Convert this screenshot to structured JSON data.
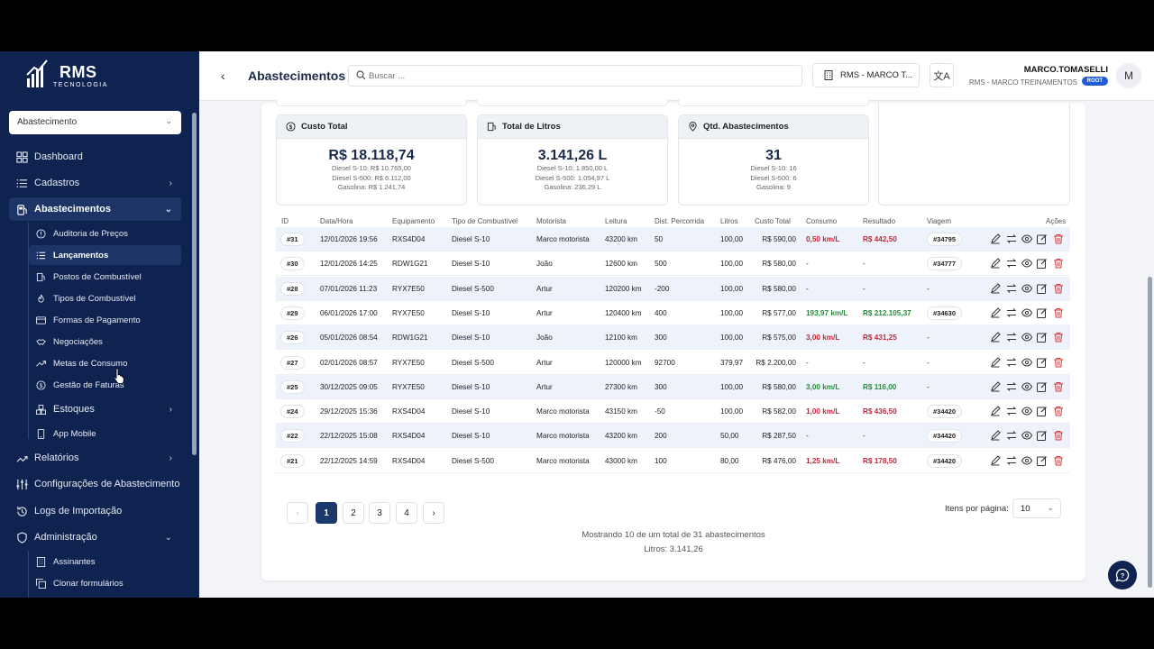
{
  "app": {
    "brand": "RMS",
    "brand_sub": "TECNOLOGIA"
  },
  "sidebar": {
    "module_select": "Abastecimento",
    "items": [
      {
        "label": "Dashboard",
        "icon": "grid-icon"
      },
      {
        "label": "Cadastros",
        "icon": "list-icon"
      },
      {
        "label": "Abastecimentos",
        "icon": "fuel-icon"
      },
      {
        "label": "Relatórios",
        "icon": "trend-icon"
      },
      {
        "label": "Configurações de Abastecimento",
        "icon": "sliders-icon"
      },
      {
        "label": "Logs de Importação",
        "icon": "history-icon"
      },
      {
        "label": "Administração",
        "icon": "shield-icon"
      }
    ],
    "sub_abastecimentos": [
      {
        "label": "Auditoria de Preços",
        "icon": "alert-circle-icon"
      },
      {
        "label": "Lançamentos",
        "icon": "list-icon"
      },
      {
        "label": "Postos de Combustível",
        "icon": "fuel-station-icon"
      },
      {
        "label": "Tipos de Combustível",
        "icon": "flame-icon"
      },
      {
        "label": "Formas de Pagamento",
        "icon": "credit-card-icon"
      },
      {
        "label": "Negociações",
        "icon": "handshake-icon"
      },
      {
        "label": "Metas de Consumo",
        "icon": "trend-icon"
      },
      {
        "label": "Gestão de Faturas",
        "icon": "dollar-circle-icon"
      },
      {
        "label": "Estoques",
        "icon": "boxes-icon"
      },
      {
        "label": "App Mobile",
        "icon": "smartphone-icon"
      }
    ],
    "sub_administracao": [
      {
        "label": "Assinantes",
        "icon": "building-icon"
      },
      {
        "label": "Clonar formulários",
        "icon": "copy-icon"
      }
    ]
  },
  "header": {
    "title": "Abastecimentos",
    "search_placeholder": "Buscar ...",
    "tenant": "RMS - MARCO T...",
    "user_name": "MARCO.TOMASELLI",
    "user_org": "RMS - MARCO TREINAMENTOS",
    "role": "ROOT",
    "avatar_initial": "M"
  },
  "stats": [
    {
      "title": "Custo Total",
      "icon": "dollar-circle-icon",
      "value": "R$ 18.118,74",
      "lines": [
        "Diesel S-10: R$ 10.765,00",
        "Diesel S-500: R$ 6.112,00",
        "Gasolina: R$ 1.241,74"
      ]
    },
    {
      "title": "Total de Litros",
      "icon": "fuel-icon",
      "value": "3.141,26 L",
      "lines": [
        "Diesel S-10: 1.850,00 L",
        "Diesel S-500: 1.054,97 L",
        "Gasolina: 236,29 L"
      ]
    },
    {
      "title": "Qtd. Abastecimentos",
      "icon": "map-pin-icon",
      "value": "31",
      "lines": [
        "Diesel S-10: 16",
        "Diesel S-500: 6",
        "Gasolina: 9"
      ]
    }
  ],
  "table": {
    "headers": [
      "ID",
      "Data/Hora",
      "Equipamento",
      "Tipo de Combustível",
      "Motorista",
      "Leitura",
      "Dist. Percorrida",
      "Litros",
      "Custo Total",
      "Consumo",
      "Resultado",
      "Viagem",
      "Ações"
    ],
    "rows": [
      {
        "id": "#31",
        "date": "12/01/2026 19:56",
        "equip": "RXS4D04",
        "fuel": "Diesel S-10",
        "driver": "Marco motorista",
        "reading": "43200 km",
        "dist": "50",
        "liters": "100,00",
        "cost": "R$ 590,00",
        "consumo": "0,50 km/L",
        "consumo_status": "red",
        "result": "R$ 442,50",
        "result_status": "red",
        "trip": "#34795"
      },
      {
        "id": "#30",
        "date": "12/01/2026 14:25",
        "equip": "RDW1G21",
        "fuel": "Diesel S-10",
        "driver": "João",
        "reading": "12600 km",
        "dist": "500",
        "liters": "100,00",
        "cost": "R$ 580,00",
        "consumo": "-",
        "consumo_status": "",
        "result": "-",
        "result_status": "",
        "trip": "#34777"
      },
      {
        "id": "#28",
        "date": "07/01/2026 11:23",
        "equip": "RYX7E50",
        "fuel": "Diesel S-500",
        "driver": "Artur",
        "reading": "120200 km",
        "dist": "-200",
        "liters": "100,00",
        "cost": "R$ 580,00",
        "consumo": "-",
        "consumo_status": "",
        "result": "-",
        "result_status": "",
        "trip": "-"
      },
      {
        "id": "#29",
        "date": "06/01/2026 17:00",
        "equip": "RYX7E50",
        "fuel": "Diesel S-10",
        "driver": "Artur",
        "reading": "120400 km",
        "dist": "400",
        "liters": "100,00",
        "cost": "R$ 577,00",
        "consumo": "193,97 km/L",
        "consumo_status": "green",
        "result": "R$ 212.105,37",
        "result_status": "green",
        "trip": "#34630"
      },
      {
        "id": "#26",
        "date": "05/01/2026 08:54",
        "equip": "RDW1G21",
        "fuel": "Diesel S-10",
        "driver": "João",
        "reading": "12100 km",
        "dist": "300",
        "liters": "100,00",
        "cost": "R$ 575,00",
        "consumo": "3,00 km/L",
        "consumo_status": "red",
        "result": "R$ 431,25",
        "result_status": "red",
        "trip": "-"
      },
      {
        "id": "#27",
        "date": "02/01/2026 08:57",
        "equip": "RYX7E50",
        "fuel": "Diesel S-500",
        "driver": "Artur",
        "reading": "120000 km",
        "dist": "92700",
        "liters": "379,97",
        "cost": "R$ 2.200,00",
        "consumo": "-",
        "consumo_status": "",
        "result": "-",
        "result_status": "",
        "trip": "-"
      },
      {
        "id": "#25",
        "date": "30/12/2025 09:05",
        "equip": "RYX7E50",
        "fuel": "Diesel S-10",
        "driver": "Artur",
        "reading": "27300 km",
        "dist": "300",
        "liters": "100,00",
        "cost": "R$ 580,00",
        "consumo": "3,00 km/L",
        "consumo_status": "green",
        "result": "R$ 116,00",
        "result_status": "green",
        "trip": "-"
      },
      {
        "id": "#24",
        "date": "29/12/2025 15:36",
        "equip": "RXS4D04",
        "fuel": "Diesel S-10",
        "driver": "Marco motorista",
        "reading": "43150 km",
        "dist": "-50",
        "liters": "100,00",
        "cost": "R$ 582,00",
        "consumo": "1,00 km/L",
        "consumo_status": "red",
        "result": "R$ 436,50",
        "result_status": "red",
        "trip": "#34420"
      },
      {
        "id": "#22",
        "date": "22/12/2025 15:08",
        "equip": "RXS4D04",
        "fuel": "Diesel S-10",
        "driver": "Marco motorista",
        "reading": "43200 km",
        "dist": "200",
        "liters": "50,00",
        "cost": "R$ 287,50",
        "consumo": "-",
        "consumo_status": "",
        "result": "-",
        "result_status": "",
        "trip": "#34420"
      },
      {
        "id": "#21",
        "date": "22/12/2025 14:59",
        "equip": "RXS4D04",
        "fuel": "Diesel S-500",
        "driver": "Marco motorista",
        "reading": "43000 km",
        "dist": "100",
        "liters": "80,00",
        "cost": "R$ 476,00",
        "consumo": "1,25 km/L",
        "consumo_status": "red",
        "result": "R$ 178,50",
        "result_status": "red",
        "trip": "#34420"
      }
    ]
  },
  "pagination": {
    "prev": "‹",
    "next": "›",
    "pages": [
      "1",
      "2",
      "3",
      "4"
    ],
    "current": "1",
    "per_page_label": "Itens por página:",
    "per_page": "10",
    "summary": "Mostrando 10 de um total de 31 abastecimentos",
    "liters_summary": "Litros: 3.141,26"
  },
  "colors": {
    "sidebar_bg": "#0f2350",
    "accent": "#1a3a6e",
    "red": "#c0283a",
    "green": "#2b8a3e",
    "badge": "#1f5cd6"
  }
}
